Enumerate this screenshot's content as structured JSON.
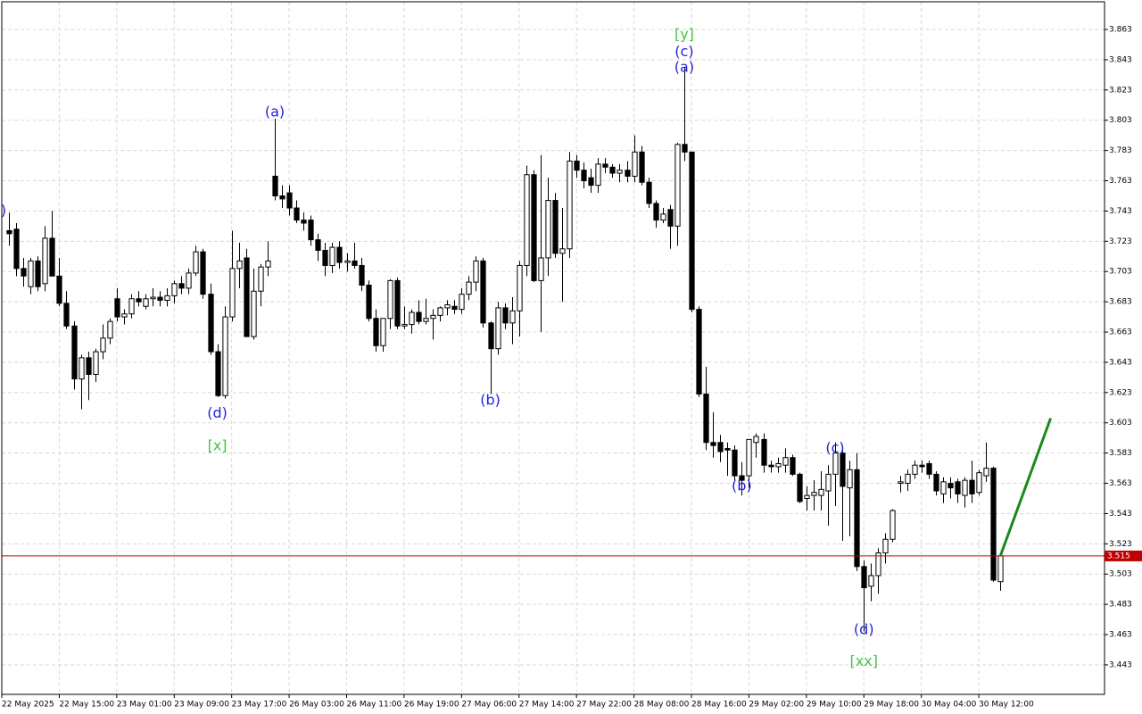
{
  "chart_data": {
    "type": "candlestick",
    "bull_color": "#ffffff",
    "bear_color": "#000000",
    "outline_color": "#000000",
    "grid": true,
    "xlim": [
      -1,
      152.5
    ],
    "ylim": [
      3.4235,
      3.8813
    ],
    "yticks": [
      3.443,
      3.463,
      3.483,
      3.503,
      3.523,
      3.543,
      3.563,
      3.583,
      3.603,
      3.623,
      3.643,
      3.663,
      3.683,
      3.703,
      3.723,
      3.743,
      3.763,
      3.783,
      3.803,
      3.823,
      3.843,
      3.863
    ],
    "xticks": [
      {
        "value": -1,
        "label": "22 May 2025"
      },
      {
        "value": 7,
        "label": "22 May 15:00"
      },
      {
        "value": 15,
        "label": "23 May 01:00"
      },
      {
        "value": 23,
        "label": "23 May 09:00"
      },
      {
        "value": 31,
        "label": "23 May 17:00"
      },
      {
        "value": 39,
        "label": "26 May 03:00"
      },
      {
        "value": 47,
        "label": "26 May 11:00"
      },
      {
        "value": 55,
        "label": "26 May 19:00"
      },
      {
        "value": 63,
        "label": "27 May 06:00"
      },
      {
        "value": 71,
        "label": "27 May 14:00"
      },
      {
        "value": 79,
        "label": "27 May 22:00"
      },
      {
        "value": 87,
        "label": "28 May 08:00"
      },
      {
        "value": 95,
        "label": "28 May 16:00"
      },
      {
        "value": 103,
        "label": "29 May 02:00"
      },
      {
        "value": 111,
        "label": "29 May 10:00"
      },
      {
        "value": 119,
        "label": "29 May 18:00"
      },
      {
        "value": 127,
        "label": "30 May 04:00"
      },
      {
        "value": 135,
        "label": "30 May 12:00"
      }
    ],
    "ohlc": [
      [
        3.73,
        3.742,
        3.72,
        3.728
      ],
      [
        3.731,
        3.735,
        3.7,
        3.705
      ],
      [
        3.705,
        3.712,
        3.693,
        3.7
      ],
      [
        3.693,
        3.712,
        3.688,
        3.71
      ],
      [
        3.71,
        3.713,
        3.69,
        3.693
      ],
      [
        3.695,
        3.733,
        3.69,
        3.725
      ],
      [
        3.725,
        3.743,
        3.7,
        3.7
      ],
      [
        3.7,
        3.712,
        3.68,
        3.682
      ],
      [
        3.682,
        3.69,
        3.665,
        3.667
      ],
      [
        3.667,
        3.67,
        3.625,
        3.632
      ],
      [
        3.632,
        3.648,
        3.612,
        3.646
      ],
      [
        3.646,
        3.65,
        3.618,
        3.635
      ],
      [
        3.635,
        3.652,
        3.63,
        3.65
      ],
      [
        3.65,
        3.668,
        3.645,
        3.659
      ],
      [
        3.659,
        3.672,
        3.655,
        3.67
      ],
      [
        3.685,
        3.692,
        3.67,
        3.673
      ],
      [
        3.673,
        3.678,
        3.668,
        3.675
      ],
      [
        3.675,
        3.688,
        3.672,
        3.685
      ],
      [
        3.685,
        3.69,
        3.68,
        3.683
      ],
      [
        3.68,
        3.688,
        3.678,
        3.685
      ],
      [
        3.685,
        3.692,
        3.68,
        3.686
      ],
      [
        3.686,
        3.69,
        3.68,
        3.684
      ],
      [
        3.684,
        3.692,
        3.68,
        3.687
      ],
      [
        3.687,
        3.697,
        3.682,
        3.695
      ],
      [
        3.695,
        3.7,
        3.688,
        3.692
      ],
      [
        3.692,
        3.705,
        3.688,
        3.702
      ],
      [
        3.702,
        3.72,
        3.7,
        3.716
      ],
      [
        3.716,
        3.718,
        3.685,
        3.688
      ],
      [
        3.688,
        3.695,
        3.648,
        3.65
      ],
      [
        3.65,
        3.655,
        3.62,
        3.621
      ],
      [
        3.621,
        3.68,
        3.619,
        3.673
      ],
      [
        3.673,
        3.73,
        3.67,
        3.705
      ],
      [
        3.705,
        3.722,
        3.692,
        3.71
      ],
      [
        3.712,
        3.718,
        3.66,
        3.66
      ],
      [
        3.66,
        3.705,
        3.658,
        3.69
      ],
      [
        3.69,
        3.708,
        3.68,
        3.706
      ],
      [
        3.706,
        3.723,
        3.7,
        3.71
      ],
      [
        3.766,
        3.804,
        3.75,
        3.753
      ],
      [
        3.753,
        3.76,
        3.745,
        3.751
      ],
      [
        3.755,
        3.76,
        3.74,
        3.745
      ],
      [
        3.745,
        3.75,
        3.735,
        3.737
      ],
      [
        3.737,
        3.742,
        3.73,
        3.735
      ],
      [
        3.737,
        3.74,
        3.72,
        3.724
      ],
      [
        3.724,
        3.728,
        3.71,
        3.717
      ],
      [
        3.717,
        3.722,
        3.7,
        3.707
      ],
      [
        3.707,
        3.722,
        3.702,
        3.719
      ],
      [
        3.719,
        3.723,
        3.705,
        3.709
      ],
      [
        3.709,
        3.715,
        3.703,
        3.71
      ],
      [
        3.71,
        3.722,
        3.705,
        3.707
      ],
      [
        3.707,
        3.712,
        3.69,
        3.694
      ],
      [
        3.694,
        3.697,
        3.67,
        3.672
      ],
      [
        3.672,
        3.678,
        3.65,
        3.654
      ],
      [
        3.654,
        3.672,
        3.65,
        3.672
      ],
      [
        3.672,
        3.698,
        3.665,
        3.697
      ],
      [
        3.697,
        3.699,
        3.665,
        3.667
      ],
      [
        3.667,
        3.68,
        3.665,
        3.668
      ],
      [
        3.668,
        3.678,
        3.662,
        3.676
      ],
      [
        3.676,
        3.684,
        3.668,
        3.67
      ],
      [
        3.67,
        3.685,
        3.668,
        3.672
      ],
      [
        3.672,
        3.678,
        3.658,
        3.674
      ],
      [
        3.674,
        3.68,
        3.67,
        3.679
      ],
      [
        3.679,
        3.684,
        3.674,
        3.681
      ],
      [
        3.68,
        3.684,
        3.675,
        3.678
      ],
      [
        3.678,
        3.692,
        3.675,
        3.688
      ],
      [
        3.688,
        3.7,
        3.684,
        3.696
      ],
      [
        3.696,
        3.713,
        3.69,
        3.71
      ],
      [
        3.71,
        3.712,
        3.666,
        3.669
      ],
      [
        3.669,
        3.67,
        3.622,
        3.652
      ],
      [
        3.652,
        3.683,
        3.648,
        3.679
      ],
      [
        3.679,
        3.682,
        3.665,
        3.669
      ],
      [
        3.669,
        3.686,
        3.655,
        3.677
      ],
      [
        3.677,
        3.71,
        3.66,
        3.707
      ],
      [
        3.707,
        3.773,
        3.7,
        3.767
      ],
      [
        3.767,
        3.77,
        3.696,
        3.697
      ],
      [
        3.697,
        3.78,
        3.663,
        3.712
      ],
      [
        3.712,
        3.765,
        3.7,
        3.75
      ],
      [
        3.75,
        3.755,
        3.712,
        3.715
      ],
      [
        3.715,
        3.745,
        3.683,
        3.718
      ],
      [
        3.718,
        3.782,
        3.712,
        3.776
      ],
      [
        3.776,
        3.78,
        3.765,
        3.77
      ],
      [
        3.77,
        3.775,
        3.758,
        3.763
      ],
      [
        3.765,
        3.771,
        3.755,
        3.76
      ],
      [
        3.76,
        3.778,
        3.755,
        3.774
      ],
      [
        3.774,
        3.778,
        3.768,
        3.772
      ],
      [
        3.772,
        3.774,
        3.765,
        3.768
      ],
      [
        3.768,
        3.774,
        3.762,
        3.77
      ],
      [
        3.77,
        3.776,
        3.762,
        3.766
      ],
      [
        3.766,
        3.793,
        3.762,
        3.782
      ],
      [
        3.782,
        3.786,
        3.76,
        3.762
      ],
      [
        3.762,
        3.765,
        3.745,
        3.748
      ],
      [
        3.748,
        3.75,
        3.732,
        3.737
      ],
      [
        3.737,
        3.745,
        3.735,
        3.741
      ],
      [
        3.744,
        3.747,
        3.718,
        3.733
      ],
      [
        3.733,
        3.788,
        3.72,
        3.787
      ],
      [
        3.787,
        3.838,
        3.776,
        3.782
      ],
      [
        3.782,
        3.782,
        3.676,
        3.678
      ],
      [
        3.678,
        3.68,
        3.62,
        3.622
      ],
      [
        3.622,
        3.64,
        3.585,
        3.59
      ],
      [
        3.59,
        3.61,
        3.58,
        3.588
      ],
      [
        3.59,
        3.595,
        3.577,
        3.584
      ],
      [
        3.586,
        3.59,
        3.568,
        3.585
      ],
      [
        3.585,
        3.588,
        3.565,
        3.568
      ],
      [
        3.568,
        3.577,
        3.555,
        3.565
      ],
      [
        3.568,
        3.591,
        3.56,
        3.592
      ],
      [
        3.59,
        3.596,
        3.58,
        3.594
      ],
      [
        3.592,
        3.596,
        3.57,
        3.575
      ],
      [
        3.575,
        3.578,
        3.57,
        3.574
      ],
      [
        3.574,
        3.58,
        3.57,
        3.576
      ],
      [
        3.575,
        3.586,
        3.57,
        3.58
      ],
      [
        3.58,
        3.582,
        3.568,
        3.569
      ],
      [
        3.569,
        3.57,
        3.55,
        3.551
      ],
      [
        3.553,
        3.561,
        3.545,
        3.555
      ],
      [
        3.555,
        3.565,
        3.545,
        3.557
      ],
      [
        3.555,
        3.571,
        3.545,
        3.559
      ],
      [
        3.558,
        3.575,
        3.535,
        3.569
      ],
      [
        3.569,
        3.59,
        3.548,
        3.583
      ],
      [
        3.583,
        3.585,
        3.525,
        3.561
      ],
      [
        3.56,
        3.578,
        3.528,
        3.572
      ],
      [
        3.572,
        3.583,
        3.505,
        3.508
      ],
      [
        3.508,
        3.512,
        3.465,
        3.494
      ],
      [
        3.495,
        3.51,
        3.485,
        3.502
      ],
      [
        3.502,
        3.52,
        3.49,
        3.517
      ],
      [
        3.517,
        3.53,
        3.51,
        3.526
      ],
      [
        3.526,
        3.546,
        3.524,
        3.545
      ],
      [
        3.563,
        3.568,
        3.557,
        3.564
      ],
      [
        3.563,
        3.572,
        3.558,
        3.569
      ],
      [
        3.569,
        3.578,
        3.566,
        3.575
      ],
      [
        3.575,
        3.578,
        3.57,
        3.574
      ],
      [
        3.576,
        3.578,
        3.566,
        3.569
      ],
      [
        3.569,
        3.571,
        3.555,
        3.558
      ],
      [
        3.556,
        3.567,
        3.55,
        3.564
      ],
      [
        3.563,
        3.567,
        3.553,
        3.56
      ],
      [
        3.564,
        3.566,
        3.55,
        3.556
      ],
      [
        3.555,
        3.567,
        3.547,
        3.565
      ],
      [
        3.565,
        3.578,
        3.55,
        3.556
      ],
      [
        3.557,
        3.572,
        3.555,
        3.57
      ],
      [
        3.568,
        3.59,
        3.564,
        3.573
      ],
      [
        3.573,
        3.574,
        3.498,
        3.499
      ],
      [
        3.498,
        3.517,
        3.492,
        3.515
      ]
    ],
    "last_price": 3.515,
    "last_price_color": "#c00000",
    "projection": {
      "from": [
        138,
        3.515
      ],
      "to": [
        145,
        3.606
      ],
      "color": "#1a8a1a"
    },
    "annotations": [
      {
        "text": "c)",
        "x": -1.3,
        "price": 3.743,
        "color": "#2222dd"
      },
      {
        "text": "(a)",
        "x": 37,
        "price": 3.808,
        "color": "#2222dd"
      },
      {
        "text": "(d)",
        "x": 29,
        "price": 3.609,
        "color": "#2222dd"
      },
      {
        "text": "[x]",
        "x": 29,
        "price": 3.5875,
        "color": "#44c444"
      },
      {
        "text": "(b)",
        "x": 67,
        "price": 3.6175,
        "color": "#2222dd"
      },
      {
        "text": "[y]",
        "x": 94,
        "price": 3.8595,
        "color": "#44c444"
      },
      {
        "text": "(c)",
        "x": 94,
        "price": 3.848,
        "color": "#2222dd"
      },
      {
        "text": "(a)",
        "x": 94,
        "price": 3.8375,
        "color": "#2222dd"
      },
      {
        "text": "(b)",
        "x": 102,
        "price": 3.561,
        "color": "#2222dd"
      },
      {
        "text": "(c)",
        "x": 115,
        "price": 3.586,
        "color": "#2222dd"
      },
      {
        "text": "(d)",
        "x": 119,
        "price": 3.466,
        "color": "#2222dd"
      },
      {
        "text": "[xx]",
        "x": 119,
        "price": 3.445,
        "color": "#44c444"
      }
    ]
  }
}
